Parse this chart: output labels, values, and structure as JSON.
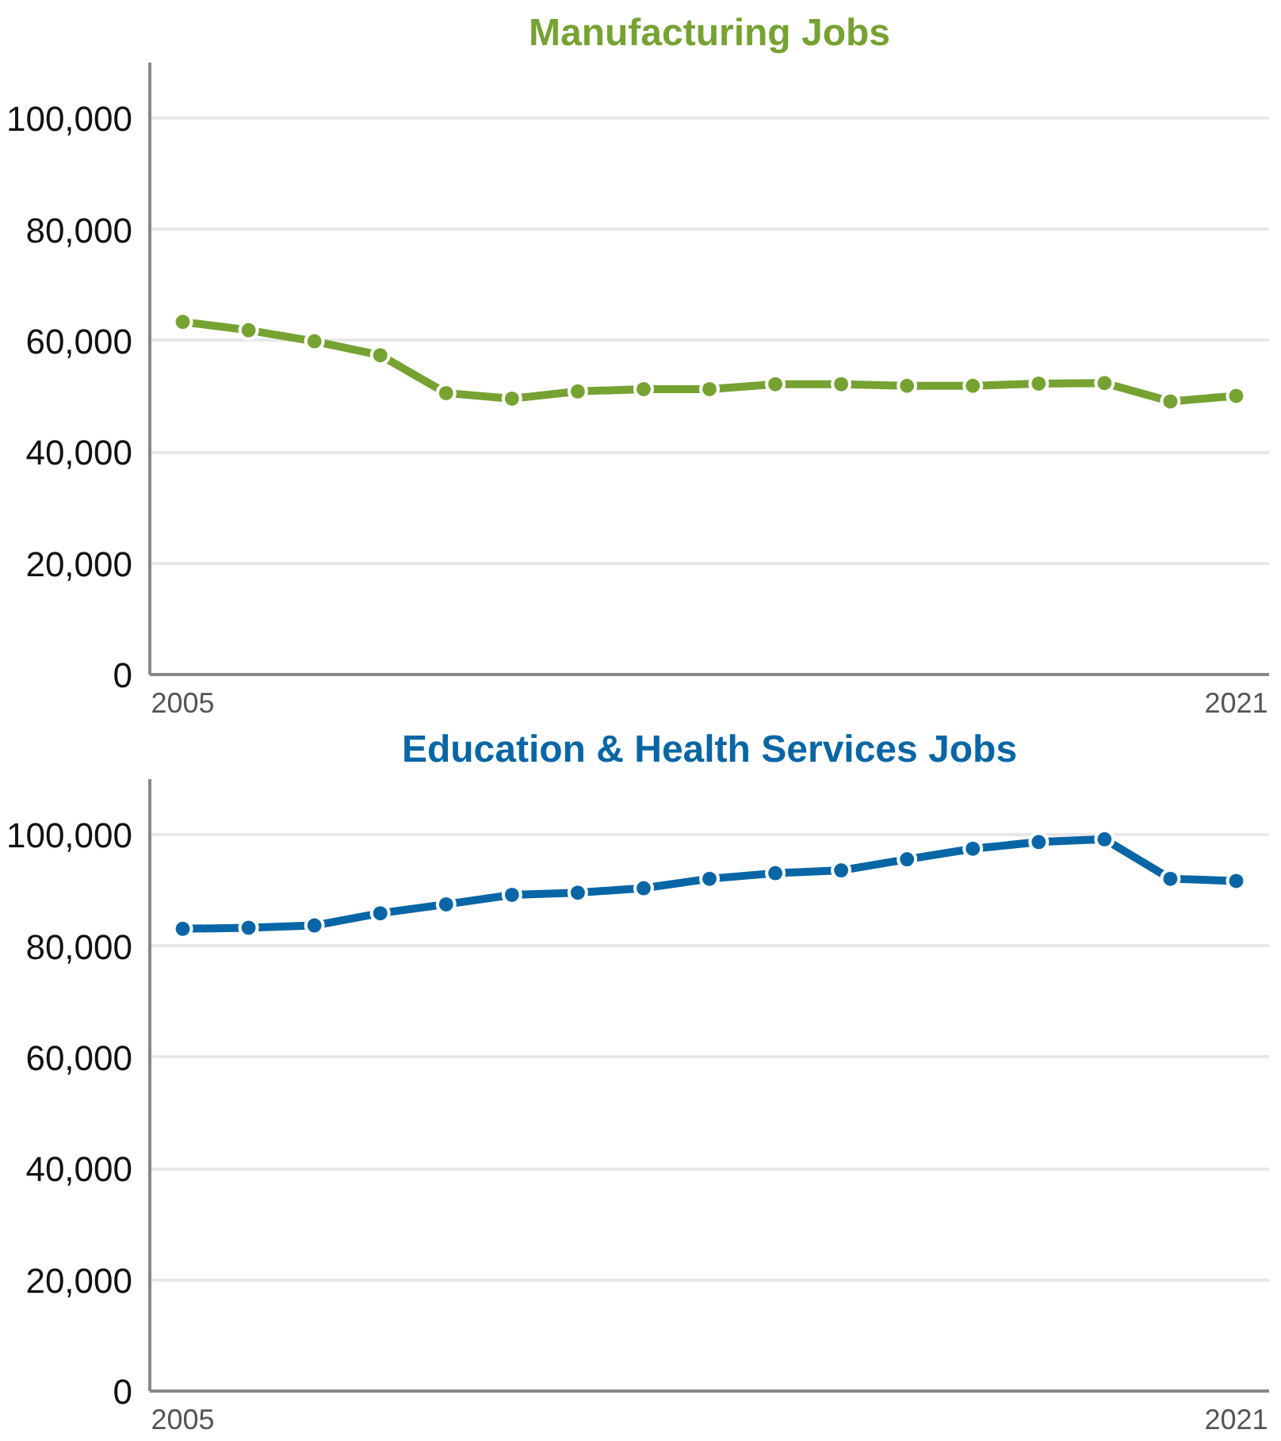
{
  "chart_data": [
    {
      "type": "line",
      "title": "Manufacturing Jobs",
      "x": [
        2005,
        2006,
        2007,
        2008,
        2009,
        2010,
        2011,
        2012,
        2013,
        2014,
        2015,
        2016,
        2017,
        2018,
        2019,
        2020,
        2021
      ],
      "series": [
        {
          "color": "#76a232",
          "values": [
            63400,
            61900,
            59900,
            57400,
            50600,
            49600,
            50900,
            51300,
            51300,
            52200,
            52200,
            51900,
            51900,
            52300,
            52400,
            49100,
            50100
          ]
        }
      ],
      "xlim": [
        2004.5,
        2021.5
      ],
      "xticks": [
        2005,
        2021
      ],
      "ylim": [
        0,
        110000
      ],
      "yticks": [
        {
          "value": 0,
          "label": "0"
        },
        {
          "value": 20000,
          "label": "20,000"
        },
        {
          "value": 40000,
          "label": "40,000"
        },
        {
          "value": 60000,
          "label": "60,000"
        },
        {
          "value": 80000,
          "label": "80,000"
        },
        {
          "value": 100000,
          "label": "100,000"
        }
      ],
      "grid": "y",
      "marker": "circle",
      "line_style": "solid"
    },
    {
      "type": "line",
      "title": "Education & Health Services Jobs",
      "x": [
        2005,
        2006,
        2007,
        2008,
        2009,
        2010,
        2011,
        2012,
        2013,
        2014,
        2015,
        2016,
        2017,
        2018,
        2019,
        2020,
        2021
      ],
      "series": [
        {
          "color": "#0866a6",
          "values": [
            83100,
            83300,
            83700,
            85900,
            87500,
            89200,
            89600,
            90400,
            92100,
            93100,
            93600,
            95600,
            97500,
            98700,
            99200,
            92100,
            91700
          ]
        }
      ],
      "xlim": [
        2004.5,
        2021.5
      ],
      "xticks": [
        2005,
        2021
      ],
      "ylim": [
        0,
        110000
      ],
      "yticks": [
        {
          "value": 0,
          "label": "0"
        },
        {
          "value": 20000,
          "label": "20,000"
        },
        {
          "value": 40000,
          "label": "40,000"
        },
        {
          "value": 60000,
          "label": "60,000"
        },
        {
          "value": 80000,
          "label": "80,000"
        },
        {
          "value": 100000,
          "label": "100,000"
        }
      ],
      "grid": "y",
      "marker": "circle",
      "line_style": "solid"
    }
  ]
}
